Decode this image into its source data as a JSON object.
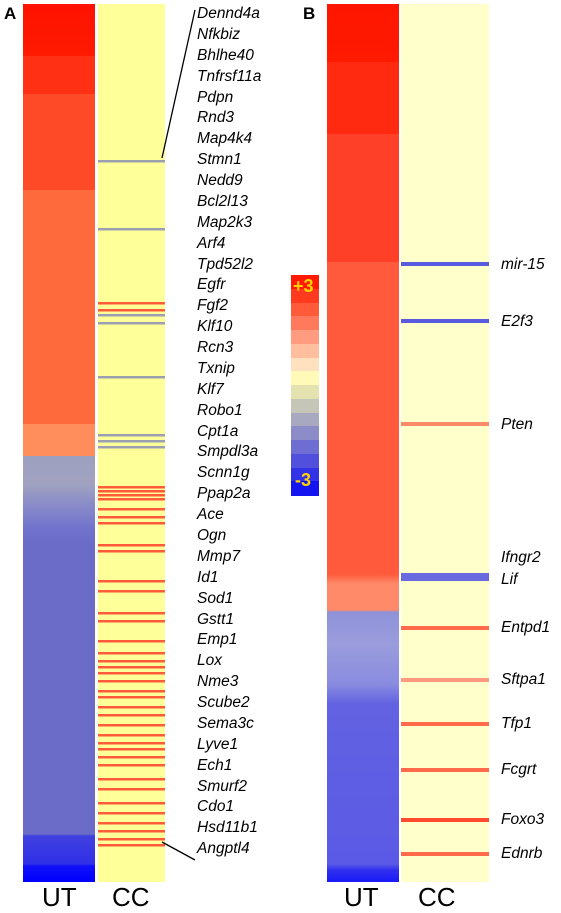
{
  "panel_a": {
    "letter": "A",
    "genes": [
      "Dennd4a",
      "Nfkbiz",
      "Bhlhe40",
      "Tnfrsf11a",
      "Pdpn",
      "Rnd3",
      "Map4k4",
      "Stmn1",
      "Nedd9",
      "Bcl2l13",
      "Map2k3",
      "Arf4",
      "Tpd52l2",
      "Egfr",
      "Fgf2",
      "Klf10",
      "Rcn3",
      "Txnip",
      "Klf7",
      "Robo1",
      "Cpt1a",
      "Smpdl3a",
      "Scnn1g",
      "Ppap2a",
      "Ace",
      "Ogn",
      "Mmp7",
      "Id1",
      "Sod1",
      "Gstt1",
      "Emp1",
      "Lox",
      "Nme3",
      "Scube2",
      "Sema3c",
      "Lyve1",
      "Ech1",
      "Smurf2",
      "Cdo1",
      "Hsd11b1",
      "Angptl4"
    ],
    "ut_label": "UT",
    "cc_label": "CC"
  },
  "panel_b": {
    "letter": "B",
    "genes": [
      "mir-15",
      "E2f3",
      "Pten",
      "Ifngr2",
      "Lif",
      "Entpd1",
      "Sftpa1",
      "Tfp1",
      "Fcgrt",
      "Foxo3",
      "Ednrb"
    ],
    "ut_label": "UT",
    "cc_label": "CC"
  },
  "legend": {
    "max_label": "+3",
    "min_label": "-3",
    "colors": [
      "#ff1a00",
      "#ff3a1e",
      "#ff5a3a",
      "#ff7a5c",
      "#ff9c80",
      "#ffbf9f",
      "#ffe0bf",
      "#fffab8",
      "#e4e2ae",
      "#c6c6b8",
      "#a8a8c0",
      "#8c8cc8",
      "#6e6ed2",
      "#5050dc",
      "#3232e6",
      "#1414f0"
    ]
  },
  "colors": {
    "cc_background": "#ffff99",
    "cc_background_b": "#ffffcc",
    "up_line": "#ff5a3a",
    "down_line": "#9aa0b0"
  }
}
